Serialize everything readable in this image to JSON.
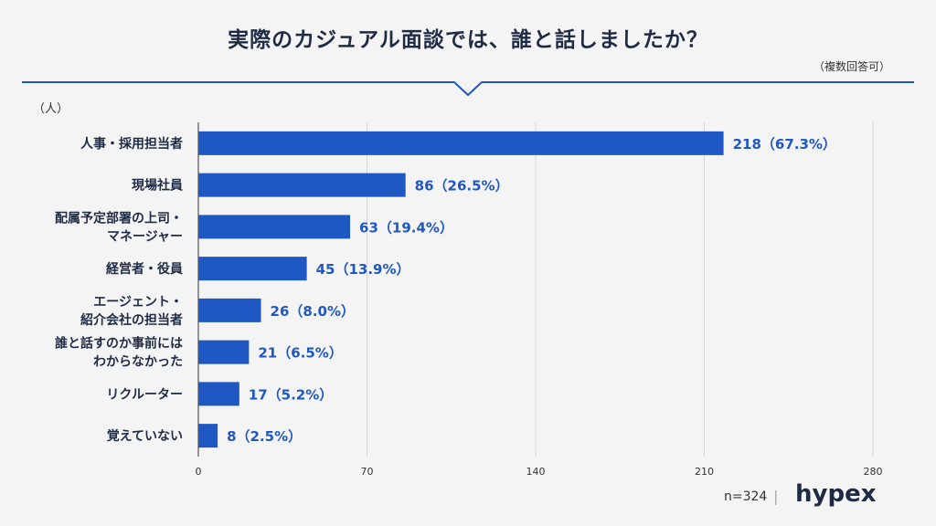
{
  "header": {
    "title": "実際のカジュアル面談では、誰と話しましたか？",
    "note": "（複数回答可）",
    "unit": "（人）"
  },
  "footer": {
    "sample_size": "n=324",
    "separator": "|",
    "brand": "hypex"
  },
  "colors": {
    "bar": "#1f57c3",
    "accent_line": "#1f57c3",
    "value_text": "#1f57c3",
    "title_text": "#1f2a44"
  },
  "chart_data": {
    "type": "bar",
    "orientation": "horizontal",
    "categories": [
      "人事・採用担当者",
      "現場社員",
      "配属予定部署の上司・\nマネージャー",
      "経営者・役員",
      "エージェント・\n紹介会社の担当者",
      "誰と話すのか事前には\nわからなかった",
      "リクルーター",
      "覚えていない"
    ],
    "values": [
      218,
      86,
      63,
      45,
      26,
      21,
      17,
      8
    ],
    "value_labels": [
      "218（67.3%）",
      "86（26.5%）",
      "63（19.4%）",
      "45（13.9%）",
      "26（8.0%）",
      "21（6.5%）",
      "17（5.2%）",
      "8（2.5%）"
    ],
    "xlim": [
      0,
      280
    ],
    "xticks": [
      "0",
      "70",
      "140",
      "210",
      "280"
    ],
    "ylabel": "（人）",
    "grid": true
  }
}
